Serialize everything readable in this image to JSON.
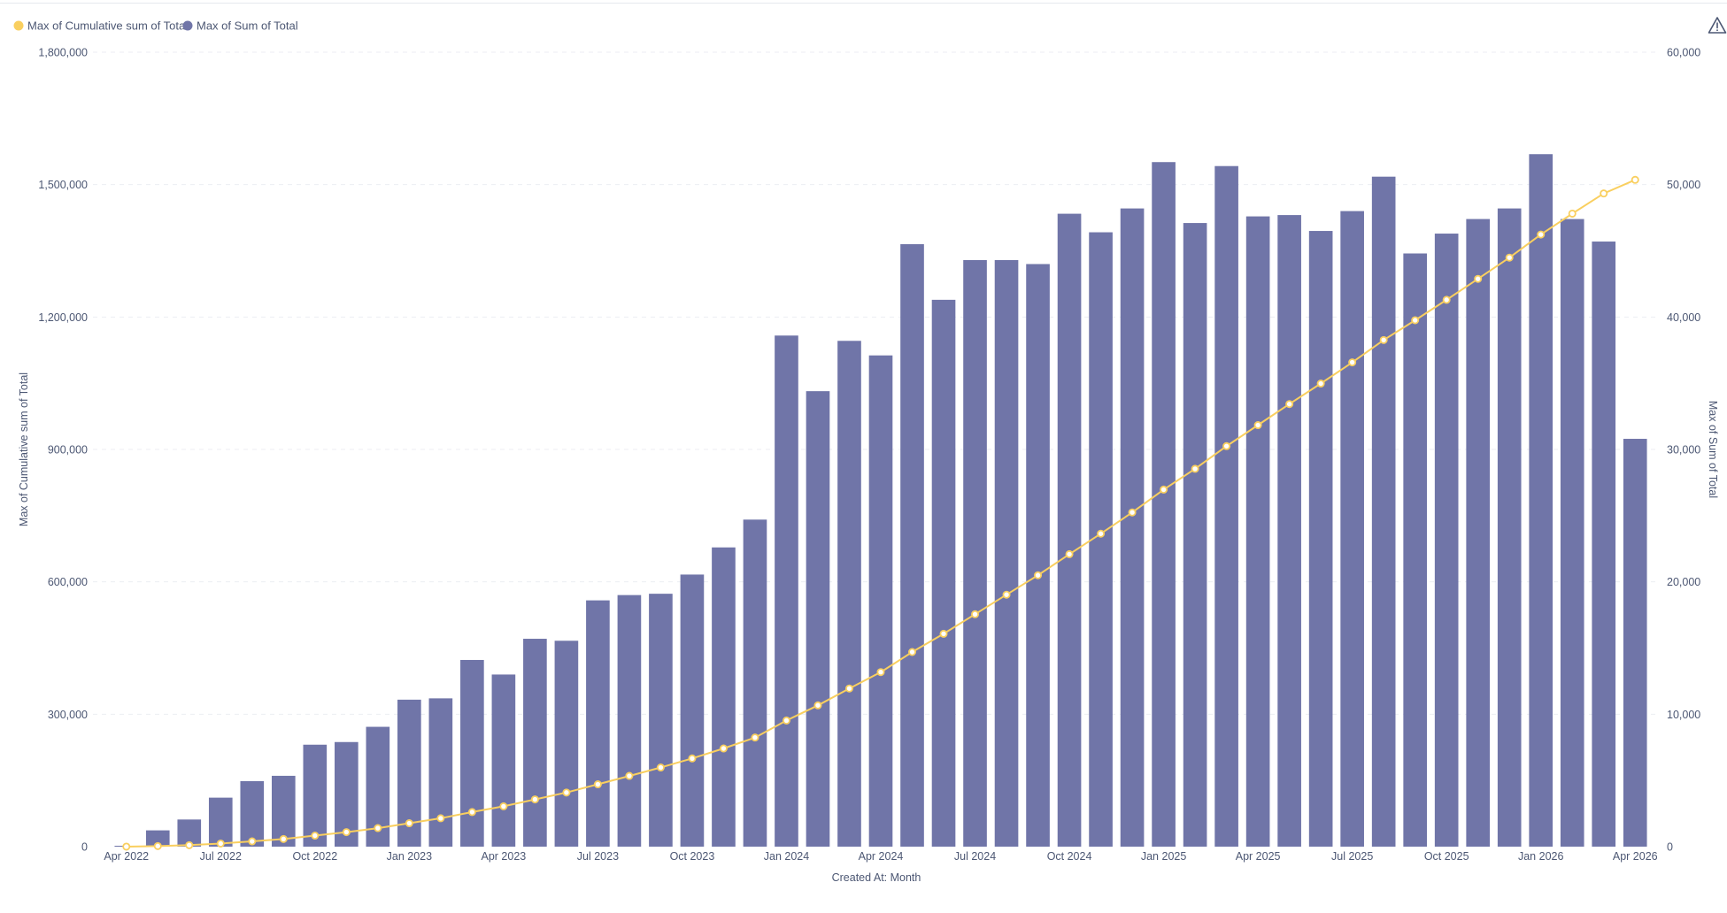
{
  "chart_data": {
    "type": "bar",
    "xlabel": "Created At: Month",
    "x_tick_labels": [
      "Apr 2022",
      "Jul 2022",
      "Oct 2022",
      "Jan 2023",
      "Apr 2023",
      "Jul 2023",
      "Oct 2023",
      "Jan 2024",
      "Apr 2024",
      "Jul 2024",
      "Oct 2024",
      "Jan 2025",
      "Apr 2025",
      "Jul 2025",
      "Oct 2025",
      "Jan 2026",
      "Apr 2026"
    ],
    "categories": [
      "2022-04",
      "2022-05",
      "2022-06",
      "2022-07",
      "2022-08",
      "2022-09",
      "2022-10",
      "2022-11",
      "2022-12",
      "2023-01",
      "2023-02",
      "2023-03",
      "2023-04",
      "2023-05",
      "2023-06",
      "2023-07",
      "2023-08",
      "2023-09",
      "2023-10",
      "2023-11",
      "2023-12",
      "2024-01",
      "2024-02",
      "2024-03",
      "2024-04",
      "2024-05",
      "2024-06",
      "2024-07",
      "2024-08",
      "2024-09",
      "2024-10",
      "2024-11",
      "2024-12",
      "2025-01",
      "2025-02",
      "2025-03",
      "2025-04",
      "2025-05",
      "2025-06",
      "2025-07",
      "2025-08",
      "2025-09",
      "2025-10",
      "2025-11",
      "2025-12",
      "2026-01",
      "2026-02",
      "2026-03",
      "2026-04"
    ],
    "legend": {
      "position": "top-left",
      "items": [
        {
          "label": "Max of Cumulative sum of Total",
          "color": "#f9cf5f"
        },
        {
          "label": "Max of Sum of Total",
          "color": "#7075a8"
        }
      ]
    },
    "y_left": {
      "label": "Max of Cumulative sum of Total",
      "range": [
        0,
        1800000
      ],
      "ticks": [
        0,
        300000,
        600000,
        900000,
        1200000,
        1500000,
        1800000
      ],
      "tick_labels": [
        "0",
        "300,000",
        "600,000",
        "900,000",
        "1,200,000",
        "1,500,000",
        "1,800,000"
      ]
    },
    "y_right": {
      "label": "Max of Sum of Total",
      "range": [
        0,
        60000
      ],
      "ticks": [
        0,
        10000,
        20000,
        30000,
        40000,
        50000,
        60000
      ],
      "tick_labels": [
        "0",
        "10,000",
        "20,000",
        "30,000",
        "40,000",
        "50,000",
        "60,000"
      ]
    },
    "grid": true,
    "series": [
      {
        "name": "Max of Sum of Total",
        "type": "bar",
        "axis": "right",
        "color": "#7075a8",
        "values": [
          52,
          1230,
          2050,
          3700,
          4950,
          5350,
          7700,
          7900,
          9050,
          11100,
          11200,
          14100,
          13000,
          15700,
          15550,
          18600,
          19000,
          19100,
          20550,
          22600,
          24700,
          38600,
          34400,
          38200,
          37100,
          45500,
          41300,
          44300,
          44300,
          44000,
          47800,
          46400,
          48200,
          51700,
          47100,
          51400,
          47600,
          47700,
          46500,
          48000,
          50600,
          44800,
          46300,
          47400,
          48200,
          52300,
          47400,
          45700,
          30800
        ]
      },
      {
        "name": "Max of Cumulative sum of Total",
        "type": "line",
        "axis": "left",
        "color": "#f9cf5f",
        "values": [
          52,
          1282,
          3332,
          7032,
          11982,
          17332,
          25032,
          32932,
          41982,
          53082,
          64282,
          78382,
          91382,
          107082,
          122632,
          141232,
          160232,
          179332,
          199882,
          222482,
          247182,
          285782,
          320182,
          358382,
          395482,
          440982,
          482282,
          526582,
          570882,
          614882,
          662682,
          709082,
          757282,
          808982,
          856082,
          907482,
          955082,
          1002782,
          1049282,
          1097282,
          1147882,
          1192682,
          1238982,
          1286382,
          1334582,
          1386882,
          1434282,
          1479982,
          1510782
        ]
      }
    ]
  },
  "warning_icon": "warning-triangle-icon"
}
